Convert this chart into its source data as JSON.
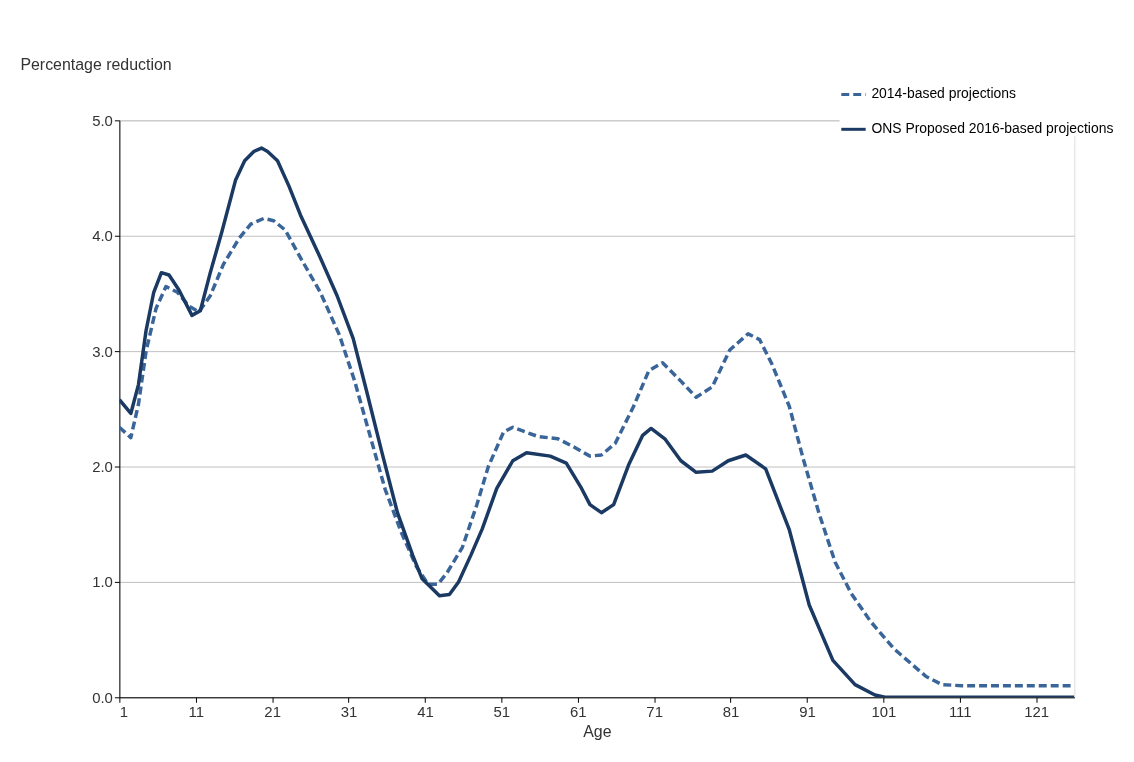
{
  "chart_data": {
    "type": "line",
    "ylabel": "Percentage reduction",
    "xlabel": "Age",
    "xlim": [
      1,
      126
    ],
    "xticks": [
      1,
      11,
      21,
      31,
      41,
      51,
      61,
      71,
      81,
      91,
      101,
      111,
      121
    ],
    "ylim": [
      0,
      5
    ],
    "yticks": [
      {
        "value": 0,
        "label": "0.0"
      },
      {
        "value": 1,
        "label": "1.0"
      },
      {
        "value": 2,
        "label": "2.0"
      },
      {
        "value": 3,
        "label": "3.0"
      },
      {
        "value": 4,
        "label": "4.0"
      },
      {
        "value": 5,
        "label": "5.0"
      }
    ],
    "grid": "y",
    "legend": "top right",
    "marker": "none",
    "series": [
      {
        "name": "2014-based projections",
        "color": "#3a6599",
        "line_style": "dashed",
        "x": [
          1,
          2.5,
          3.5,
          4.5,
          5.8,
          7.1,
          8.6,
          10.1,
          11.4,
          12.9,
          14.6,
          16.7,
          18.2,
          19.9,
          21.2,
          22.7,
          24.7,
          27.3,
          29.8,
          31.8,
          33.8,
          35.8,
          37.9,
          39.9,
          41.4,
          42.7,
          43.9,
          45.9,
          47.8,
          49.3,
          51.3,
          52.5,
          55.8,
          58.4,
          60.5,
          62.6,
          64.1,
          65.9,
          68.3,
          70.3,
          72.1,
          74.5,
          76.5,
          78.6,
          80.9,
          83.3,
          84.8,
          86.4,
          88.7,
          90.5,
          92.6,
          94.7,
          96.8,
          99.3,
          102.4,
          106.6,
          108.7,
          111.3,
          126
        ],
        "values": [
          2.34,
          2.25,
          2.54,
          3.0,
          3.37,
          3.56,
          3.51,
          3.39,
          3.34,
          3.48,
          3.75,
          3.98,
          4.1,
          4.15,
          4.13,
          4.05,
          3.81,
          3.51,
          3.14,
          2.74,
          2.27,
          1.8,
          1.43,
          1.13,
          0.98,
          0.98,
          1.08,
          1.3,
          1.67,
          2.0,
          2.3,
          2.34,
          2.26,
          2.24,
          2.17,
          2.09,
          2.1,
          2.2,
          2.52,
          2.83,
          2.9,
          2.74,
          2.6,
          2.69,
          3.01,
          3.15,
          3.1,
          2.89,
          2.52,
          2.07,
          1.59,
          1.17,
          0.9,
          0.66,
          0.42,
          0.18,
          0.11,
          0.1,
          0.1
        ]
      },
      {
        "name": "ONS Proposed 2016-based projections",
        "color": "#1b3a63",
        "line_style": "solid",
        "x": [
          1,
          2.5,
          3.5,
          4.5,
          5.5,
          6.5,
          7.5,
          8.8,
          10.5,
          11.6,
          12.9,
          14.4,
          16.2,
          17.4,
          18.6,
          19.6,
          20.4,
          21.7,
          23.2,
          24.7,
          27.3,
          29.5,
          31.6,
          33.3,
          35.3,
          37.4,
          39.4,
          40.6,
          42.9,
          44.2,
          45.4,
          47,
          48.5,
          50.4,
          52.5,
          54.3,
          57.4,
          59.5,
          61.5,
          62.6,
          64.1,
          65.7,
          67.7,
          69.5,
          70.6,
          72.4,
          74.5,
          76.5,
          78.6,
          80.7,
          83,
          85.6,
          88.7,
          91.3,
          94.4,
          97.3,
          99.9,
          101.2,
          126
        ],
        "values": [
          2.58,
          2.46,
          2.71,
          3.18,
          3.51,
          3.68,
          3.66,
          3.53,
          3.31,
          3.35,
          3.68,
          4.03,
          4.48,
          4.65,
          4.73,
          4.76,
          4.73,
          4.65,
          4.43,
          4.18,
          3.81,
          3.48,
          3.11,
          2.67,
          2.14,
          1.6,
          1.23,
          1.03,
          0.88,
          0.89,
          1.0,
          1.23,
          1.46,
          1.81,
          2.05,
          2.12,
          2.09,
          2.03,
          1.81,
          1.67,
          1.6,
          1.67,
          2.02,
          2.27,
          2.33,
          2.24,
          2.05,
          1.95,
          1.96,
          2.05,
          2.1,
          1.98,
          1.45,
          0.8,
          0.32,
          0.11,
          0.02,
          0,
          0
        ]
      }
    ]
  }
}
